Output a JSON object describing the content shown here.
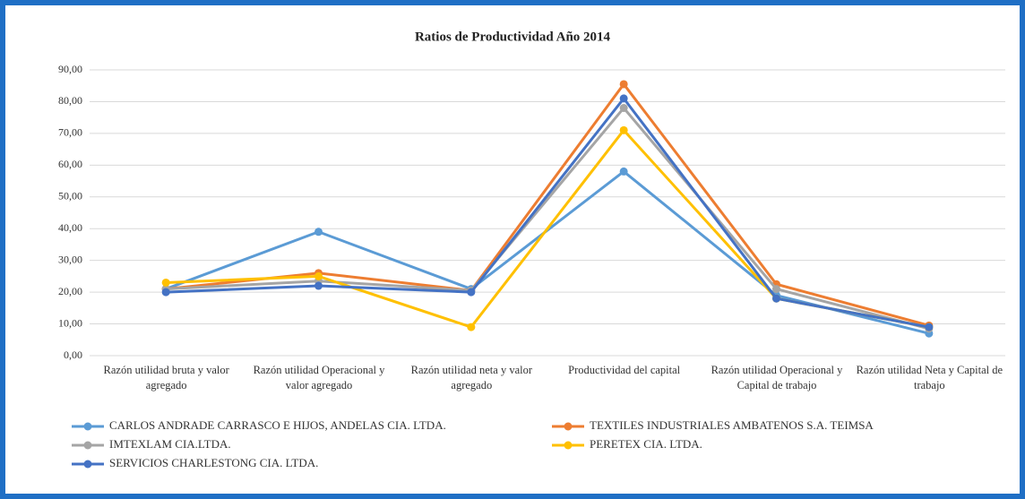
{
  "chart_data": {
    "type": "line",
    "title": "Ratios de Productividad Año 2014",
    "categories": [
      "Razón utilidad bruta y valor agregado",
      "Razón utilidad Operacional y valor agregado",
      "Razón utilidad neta y valor agregado",
      "Productividad del capital",
      "Razón utilidad Operacional y  Capital de trabajo",
      "Razón utilidad Neta  y Capital de trabajo"
    ],
    "series": [
      {
        "name": "CARLOS ANDRADE CARRASCO E HIJOS, ANDELAS CIA. LTDA.",
        "color": "#5b9bd5",
        "values": [
          21,
          39,
          21,
          58,
          19,
          7
        ]
      },
      {
        "name": "TEXTILES INDUSTRIALES AMBATENOS S.A. TEIMSA",
        "color": "#ed7d31",
        "values": [
          21,
          26,
          20.5,
          85.5,
          22.5,
          9.5
        ]
      },
      {
        "name": "IMTEXLAM CIA.LTDA.",
        "color": "#a5a5a5",
        "values": [
          21,
          23.5,
          20.5,
          78,
          21,
          8.5
        ]
      },
      {
        "name": "PERETEX CIA. LTDA.",
        "color": "#ffc000",
        "values": [
          23,
          25,
          9,
          71,
          18,
          9
        ]
      },
      {
        "name": "SERVICIOS CHARLESTONG CIA. LTDA.",
        "color": "#4472c4",
        "values": [
          20,
          22,
          20,
          81,
          18,
          9
        ]
      }
    ],
    "ylim": [
      0,
      90
    ],
    "yticks": [
      {
        "value": 0,
        "label": "0,00"
      },
      {
        "value": 10,
        "label": "10,00"
      },
      {
        "value": 20,
        "label": "20,00"
      },
      {
        "value": 30,
        "label": "30,00"
      },
      {
        "value": 40,
        "label": "40,00"
      },
      {
        "value": 50,
        "label": "50,00"
      },
      {
        "value": 60,
        "label": "60,00"
      },
      {
        "value": 70,
        "label": "70,00"
      },
      {
        "value": 80,
        "label": "80,00"
      },
      {
        "value": 90,
        "label": "90,00"
      }
    ],
    "grid": true
  }
}
